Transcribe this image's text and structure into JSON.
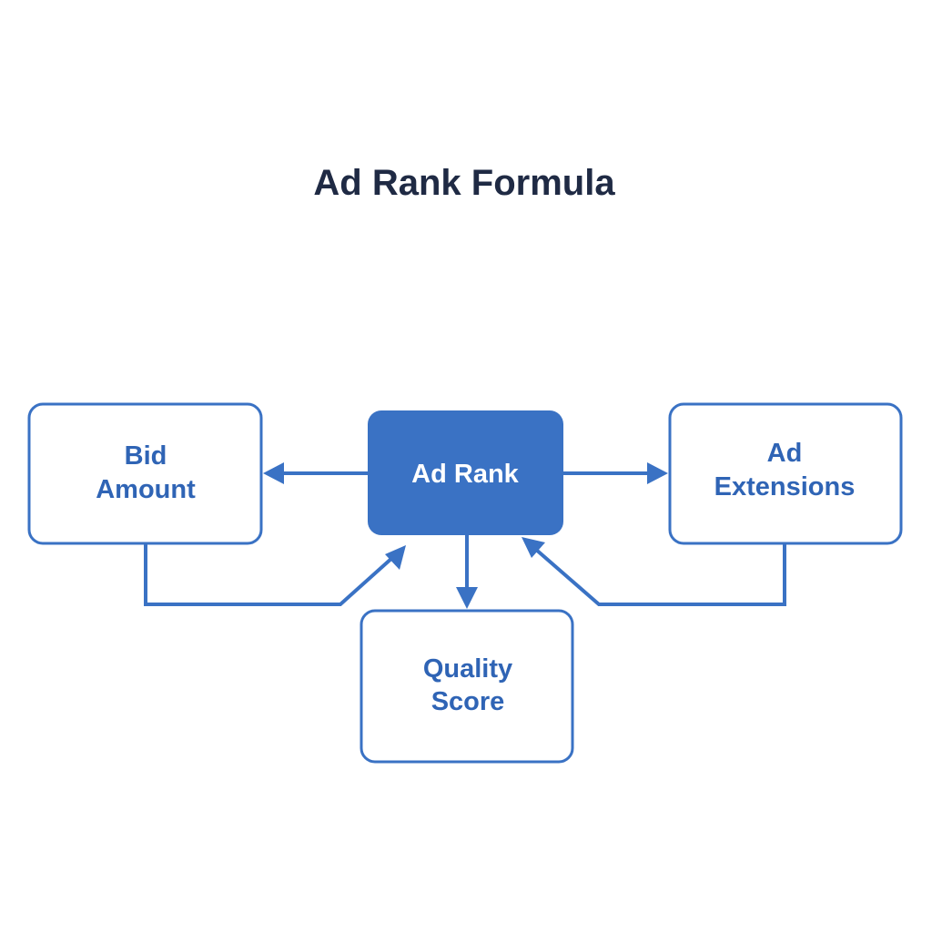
{
  "title": "Ad Rank Formula",
  "nodes": {
    "bid_amount": {
      "lines": [
        "Bid",
        "Amount"
      ]
    },
    "ad_rank": {
      "label": "Ad Rank"
    },
    "ad_extensions": {
      "lines": [
        "Ad",
        "Extensions"
      ]
    },
    "quality_score": {
      "lines": [
        "Quality",
        "Score"
      ]
    }
  },
  "edges": [
    {
      "from": "ad_rank",
      "to": "bid_amount"
    },
    {
      "from": "ad_rank",
      "to": "ad_extensions"
    },
    {
      "from": "ad_rank",
      "to": "quality_score"
    },
    {
      "from": "bid_amount",
      "to": "ad_rank"
    },
    {
      "from": "ad_extensions",
      "to": "ad_rank"
    }
  ],
  "colors": {
    "primary": "#3a72c4",
    "label": "#2f64b5",
    "title": "#1f2a44"
  }
}
